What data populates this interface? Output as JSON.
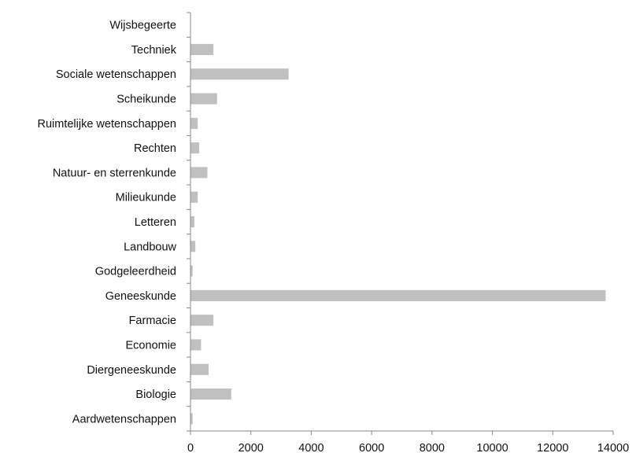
{
  "chart_data": {
    "type": "bar",
    "orientation": "horizontal",
    "categories": [
      "Wijsbegeerte",
      "Techniek",
      "Sociale wetenschappen",
      "Scheikunde",
      "Ruimtelijke wetenschappen",
      "Rechten",
      "Natuur- en sterrenkunde",
      "Milieukunde",
      "Letteren",
      "Landbouw",
      "Godgeleerdheid",
      "Geneeskunde",
      "Farmacie",
      "Economie",
      "Diergeneeskunde",
      "Biologie",
      "Aardwetenschappen"
    ],
    "values": [
      0,
      760,
      3250,
      880,
      240,
      290,
      560,
      240,
      130,
      160,
      70,
      13750,
      760,
      350,
      600,
      1350,
      70
    ],
    "xlim": [
      0,
      14000
    ],
    "xticks": [
      0,
      2000,
      4000,
      6000,
      8000,
      10000,
      12000,
      14000
    ],
    "title": "",
    "xlabel": "",
    "ylabel": "",
    "grid": false,
    "legend": "none",
    "bar_color": "#c0c0c0",
    "axis_color": "#888888"
  }
}
